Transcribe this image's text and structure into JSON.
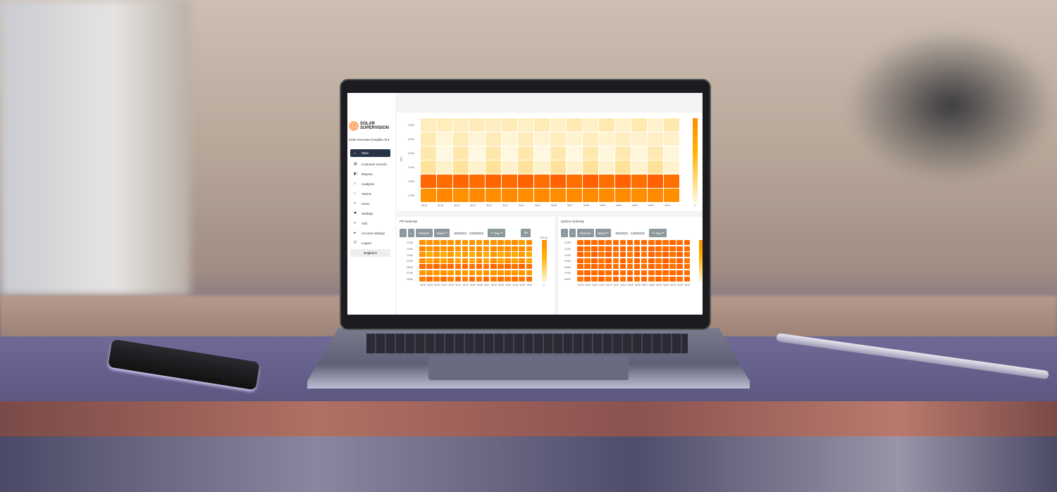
{
  "app": {
    "logo_line1": "SOLAR",
    "logo_line2": "SUPERVISION",
    "site_selector": "Solar Overview (Insights 3)"
  },
  "sidebar": {
    "items": [
      {
        "label": "Sites",
        "icon": "home-icon",
        "active": true
      },
      {
        "label": "Customer records",
        "icon": "document-icon"
      },
      {
        "label": "Reports",
        "icon": "report-icon"
      },
      {
        "label": "Analyses",
        "icon": "search-icon"
      },
      {
        "label": "Alarms",
        "icon": "bell-icon"
      },
      {
        "label": "Users",
        "icon": "add-user-icon"
      },
      {
        "label": "Settings",
        "icon": "gear-icon"
      },
      {
        "label": "Add",
        "icon": "plus-icon"
      },
      {
        "label": "Account settings",
        "icon": "user-icon"
      },
      {
        "label": "Logout",
        "icon": "logout-icon"
      }
    ],
    "language": "English"
  },
  "colors": {
    "low": "#fff8e1",
    "mid": "#ffb300",
    "high": "#ff5a00",
    "sidebar_active": "#263446"
  },
  "chart_data": [
    {
      "type": "heatmap",
      "ylabel": "kWh",
      "rows": [
        "15/06",
        "11/06",
        "16/06",
        "13/06",
        "14/06",
        "12/06"
      ],
      "cols": [
        "W/16",
        "W/15",
        "W/14",
        "W/13",
        "W/12",
        "W/11",
        "W/10",
        "W/09",
        "W/08",
        "W/07",
        "W/06",
        "W/05",
        "W/04",
        "W/03",
        "W/02",
        "W/01"
      ],
      "row_levels": [
        0.08,
        0.06,
        0.06,
        0.1,
        0.92,
        0.72
      ],
      "colorbar_min": "0"
    },
    {
      "type": "heatmap",
      "title": "PR heatmap",
      "toolbar": {
        "present": "Present",
        "range": "Week",
        "dates": "6/6/2022 - 12/6/2022",
        "granularity": "Day"
      },
      "rows": [
        "12/06",
        "11/06",
        "10/06",
        "09/06",
        "08/06",
        "07/06",
        "06/06"
      ],
      "cols": [
        "W/16",
        "W/15",
        "W/14",
        "W/13",
        "W/12",
        "W/11",
        "W/10",
        "W/09",
        "W/08",
        "W/07",
        "W/06",
        "W/05",
        "W/04",
        "W/03",
        "W/02",
        "W/01"
      ],
      "row_levels": [
        0.68,
        0.7,
        0.6,
        0.65,
        0.9,
        0.66,
        0.85
      ],
      "colorbar_max": "100.00",
      "colorbar_min": "0"
    },
    {
      "type": "heatmap",
      "title": "Uptime heatmap",
      "toolbar": {
        "present": "Present",
        "range": "Week",
        "dates": "6/6/2022 - 12/6/2022",
        "granularity": "Day"
      },
      "rows": [
        "12/06",
        "11/06",
        "10/06",
        "09/06",
        "08/06",
        "07/06",
        "06/06"
      ],
      "cols": [
        "W/16",
        "W/15",
        "W/14",
        "W/13",
        "W/12",
        "W/11",
        "W/10",
        "W/09",
        "W/08",
        "W/07",
        "W/06",
        "W/05",
        "W/04",
        "W/03",
        "W/02",
        "W/01"
      ],
      "row_levels": [
        0.9,
        0.9,
        0.9,
        0.9,
        0.9,
        0.9,
        0.9
      ]
    }
  ]
}
